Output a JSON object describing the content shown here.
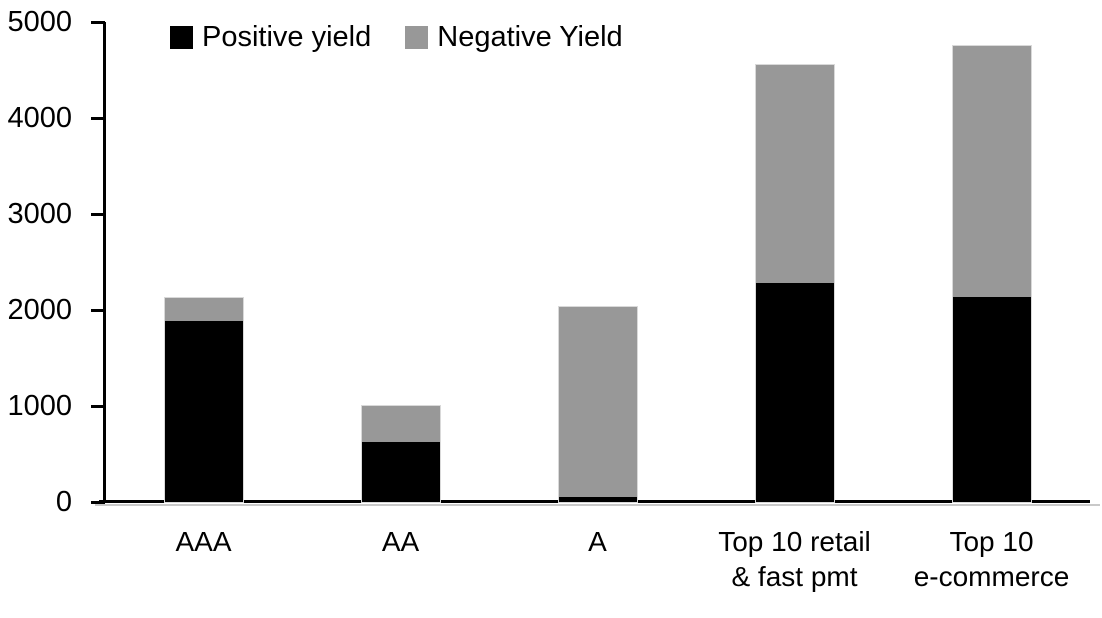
{
  "chart_data": {
    "type": "bar",
    "stacked": true,
    "title": "",
    "xlabel": "",
    "ylabel": "",
    "categories": [
      "AAA",
      "AA",
      "A",
      "Top 10 retail\n& fast pmt",
      "Top 10\ne-commerce"
    ],
    "series": [
      {
        "name": "Positive yield",
        "color": "#000000",
        "values": [
          1890,
          620,
          50,
          2280,
          2140
        ]
      },
      {
        "name": "Negative Yield",
        "color": "#989898",
        "values": [
          230,
          380,
          1980,
          2270,
          2610
        ]
      }
    ],
    "stacked_totals": [
      2120,
      1000,
      2030,
      4550,
      4750
    ],
    "ylim": [
      0,
      5000
    ],
    "yticks": [
      "0",
      "1000",
      "2000",
      "3000",
      "4000",
      "5000"
    ],
    "grid": false,
    "legend_position": "top-left-inside"
  },
  "colors": {
    "positive_yield": "#000000",
    "negative_yield": "#989898",
    "axis": "#000000",
    "axis_shadow": "#c9c9c9",
    "bar_outline": "#d9d9d9",
    "background": "#ffffff",
    "text": "#000000"
  }
}
